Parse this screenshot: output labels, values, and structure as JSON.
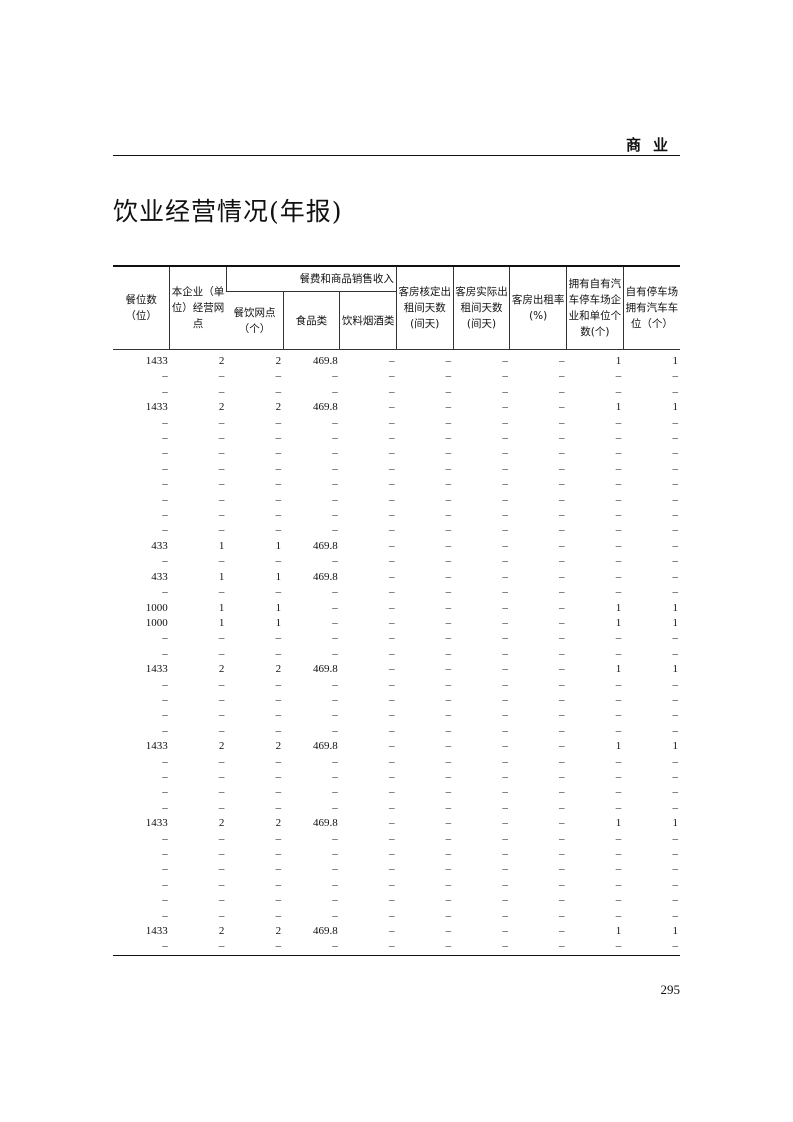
{
  "running_head": "商业",
  "title": "饮业经营情况(年报)",
  "table": {
    "headers": {
      "seats": "餐位数（位）",
      "outlets": "本企业（单位）经营网点",
      "group": "餐费和商品销售收入",
      "dining_outlets": "餐饮网点（个）",
      "food": "食品类",
      "beverage": "饮料烟酒类",
      "room_days_rated": "客房核定出租间天数(间天)",
      "room_days_actual": "客房实际出租间天数(间天)",
      "occupancy": "客房出租率(%)",
      "parking_units": "拥有自有汽车停车场企业和单位个数(个)",
      "parking_spaces": "自有停车场拥有汽车车位（个）"
    },
    "rows": [
      [
        "1433",
        "2",
        "2",
        "469.8",
        "–",
        "–",
        "–",
        "–",
        "1",
        "1"
      ],
      [
        "–",
        "–",
        "–",
        "–",
        "–",
        "–",
        "–",
        "–",
        "–",
        "–"
      ],
      [
        "–",
        "–",
        "–",
        "–",
        "–",
        "–",
        "–",
        "–",
        "–",
        "–"
      ],
      [
        "1433",
        "2",
        "2",
        "469.8",
        "–",
        "–",
        "–",
        "–",
        "1",
        "1"
      ],
      [
        "–",
        "–",
        "–",
        "–",
        "–",
        "–",
        "–",
        "–",
        "–",
        "–"
      ],
      [
        "–",
        "–",
        "–",
        "–",
        "–",
        "–",
        "–",
        "–",
        "–",
        "–"
      ],
      [
        "–",
        "–",
        "–",
        "–",
        "–",
        "–",
        "–",
        "–",
        "–",
        "–"
      ],
      [
        "–",
        "–",
        "–",
        "–",
        "–",
        "–",
        "–",
        "–",
        "–",
        "–"
      ],
      [
        "–",
        "–",
        "–",
        "–",
        "–",
        "–",
        "–",
        "–",
        "–",
        "–"
      ],
      [
        "–",
        "–",
        "–",
        "–",
        "–",
        "–",
        "–",
        "–",
        "–",
        "–"
      ],
      [
        "–",
        "–",
        "–",
        "–",
        "–",
        "–",
        "–",
        "–",
        "–",
        "–"
      ],
      [
        "–",
        "–",
        "–",
        "–",
        "–",
        "–",
        "–",
        "–",
        "–",
        "–"
      ],
      [
        "433",
        "1",
        "1",
        "469.8",
        "–",
        "–",
        "–",
        "–",
        "–",
        "–"
      ],
      [
        "–",
        "–",
        "–",
        "–",
        "–",
        "–",
        "–",
        "–",
        "–",
        "–"
      ],
      [
        "433",
        "1",
        "1",
        "469.8",
        "–",
        "–",
        "–",
        "–",
        "–",
        "–"
      ],
      [
        "–",
        "–",
        "–",
        "–",
        "–",
        "–",
        "–",
        "–",
        "–",
        "–"
      ],
      [
        "1000",
        "1",
        "1",
        "–",
        "–",
        "–",
        "–",
        "–",
        "1",
        "1"
      ],
      [
        "1000",
        "1",
        "1",
        "–",
        "–",
        "–",
        "–",
        "–",
        "1",
        "1"
      ],
      [
        "–",
        "–",
        "–",
        "–",
        "–",
        "–",
        "–",
        "–",
        "–",
        "–"
      ],
      [
        "–",
        "–",
        "–",
        "–",
        "–",
        "–",
        "–",
        "–",
        "–",
        "–"
      ],
      [
        "1433",
        "2",
        "2",
        "469.8",
        "–",
        "–",
        "–",
        "–",
        "1",
        "1"
      ],
      [
        "–",
        "–",
        "–",
        "–",
        "–",
        "–",
        "–",
        "–",
        "–",
        "–"
      ],
      [
        "–",
        "–",
        "–",
        "–",
        "–",
        "–",
        "–",
        "–",
        "–",
        "–"
      ],
      [
        "–",
        "–",
        "–",
        "–",
        "–",
        "–",
        "–",
        "–",
        "–",
        "–"
      ],
      [
        "–",
        "–",
        "–",
        "–",
        "–",
        "–",
        "–",
        "–",
        "–",
        "–"
      ],
      [
        "1433",
        "2",
        "2",
        "469.8",
        "–",
        "–",
        "–",
        "–",
        "1",
        "1"
      ],
      [
        "–",
        "–",
        "–",
        "–",
        "–",
        "–",
        "–",
        "–",
        "–",
        "–"
      ],
      [
        "–",
        "–",
        "–",
        "–",
        "–",
        "–",
        "–",
        "–",
        "–",
        "–"
      ],
      [
        "–",
        "–",
        "–",
        "–",
        "–",
        "–",
        "–",
        "–",
        "–",
        "–"
      ],
      [
        "–",
        "–",
        "–",
        "–",
        "–",
        "–",
        "–",
        "–",
        "–",
        "–"
      ],
      [
        "1433",
        "2",
        "2",
        "469.8",
        "–",
        "–",
        "–",
        "–",
        "1",
        "1"
      ],
      [
        "–",
        "–",
        "–",
        "–",
        "–",
        "–",
        "–",
        "–",
        "–",
        "–"
      ],
      [
        "–",
        "–",
        "–",
        "–",
        "–",
        "–",
        "–",
        "–",
        "–",
        "–"
      ],
      [
        "–",
        "–",
        "–",
        "–",
        "–",
        "–",
        "–",
        "–",
        "–",
        "–"
      ],
      [
        "–",
        "–",
        "–",
        "–",
        "–",
        "–",
        "–",
        "–",
        "–",
        "–"
      ],
      [
        "–",
        "–",
        "–",
        "–",
        "–",
        "–",
        "–",
        "–",
        "–",
        "–"
      ],
      [
        "–",
        "–",
        "–",
        "–",
        "–",
        "–",
        "–",
        "–",
        "–",
        "–"
      ],
      [
        "1433",
        "2",
        "2",
        "469.8",
        "–",
        "–",
        "–",
        "–",
        "1",
        "1"
      ],
      [
        "–",
        "–",
        "–",
        "–",
        "–",
        "–",
        "–",
        "–",
        "–",
        "–"
      ]
    ]
  },
  "page_number": "295"
}
